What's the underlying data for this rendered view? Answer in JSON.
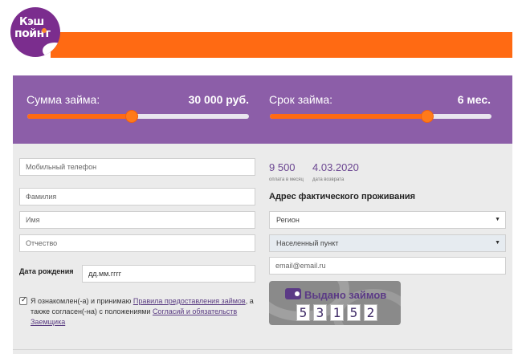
{
  "brand": {
    "logo_line1": "Кэш",
    "logo_line2": "пойнт",
    "colors": {
      "orange": "#ff6a13",
      "purple": "#8c5ea8",
      "dark_purple": "#6b4691"
    }
  },
  "loan_sliders": {
    "amount": {
      "label": "Сумма займа:",
      "value": "30 000 руб.",
      "fill": 0.47
    },
    "term": {
      "label": "Срок займа:",
      "value": "6 мес.",
      "fill": 0.71
    }
  },
  "form": {
    "phone_placeholder": "Мобильный телефон",
    "lastname_placeholder": "Фамилия",
    "firstname_placeholder": "Имя",
    "patronymic_placeholder": "Отчество",
    "dob_label": "Дата рождения",
    "dob_placeholder": "дд.мм.гггг",
    "agree_text_1": "Я ознакомлен(-а) и принимаю ",
    "agree_link_1": "Правила предоставления займов",
    "agree_text_2": ", а также согласен(-на) с положениями ",
    "agree_link_2": "Согласий и обязательств Заемщика",
    "checkbox_checked": true
  },
  "summary": {
    "monthly_amount": "9 500",
    "monthly_caption": "оплата в месяц",
    "return_date": "4.03.2020",
    "return_caption": "дата возврата"
  },
  "address": {
    "title": "Адрес фактического проживания",
    "region": "Регион",
    "locality": "Населенный пункт",
    "email_placeholder": "email@email.ru"
  },
  "counter": {
    "title": "Выдано займов",
    "digits": [
      "5",
      "3",
      "1",
      "5",
      "2"
    ]
  }
}
